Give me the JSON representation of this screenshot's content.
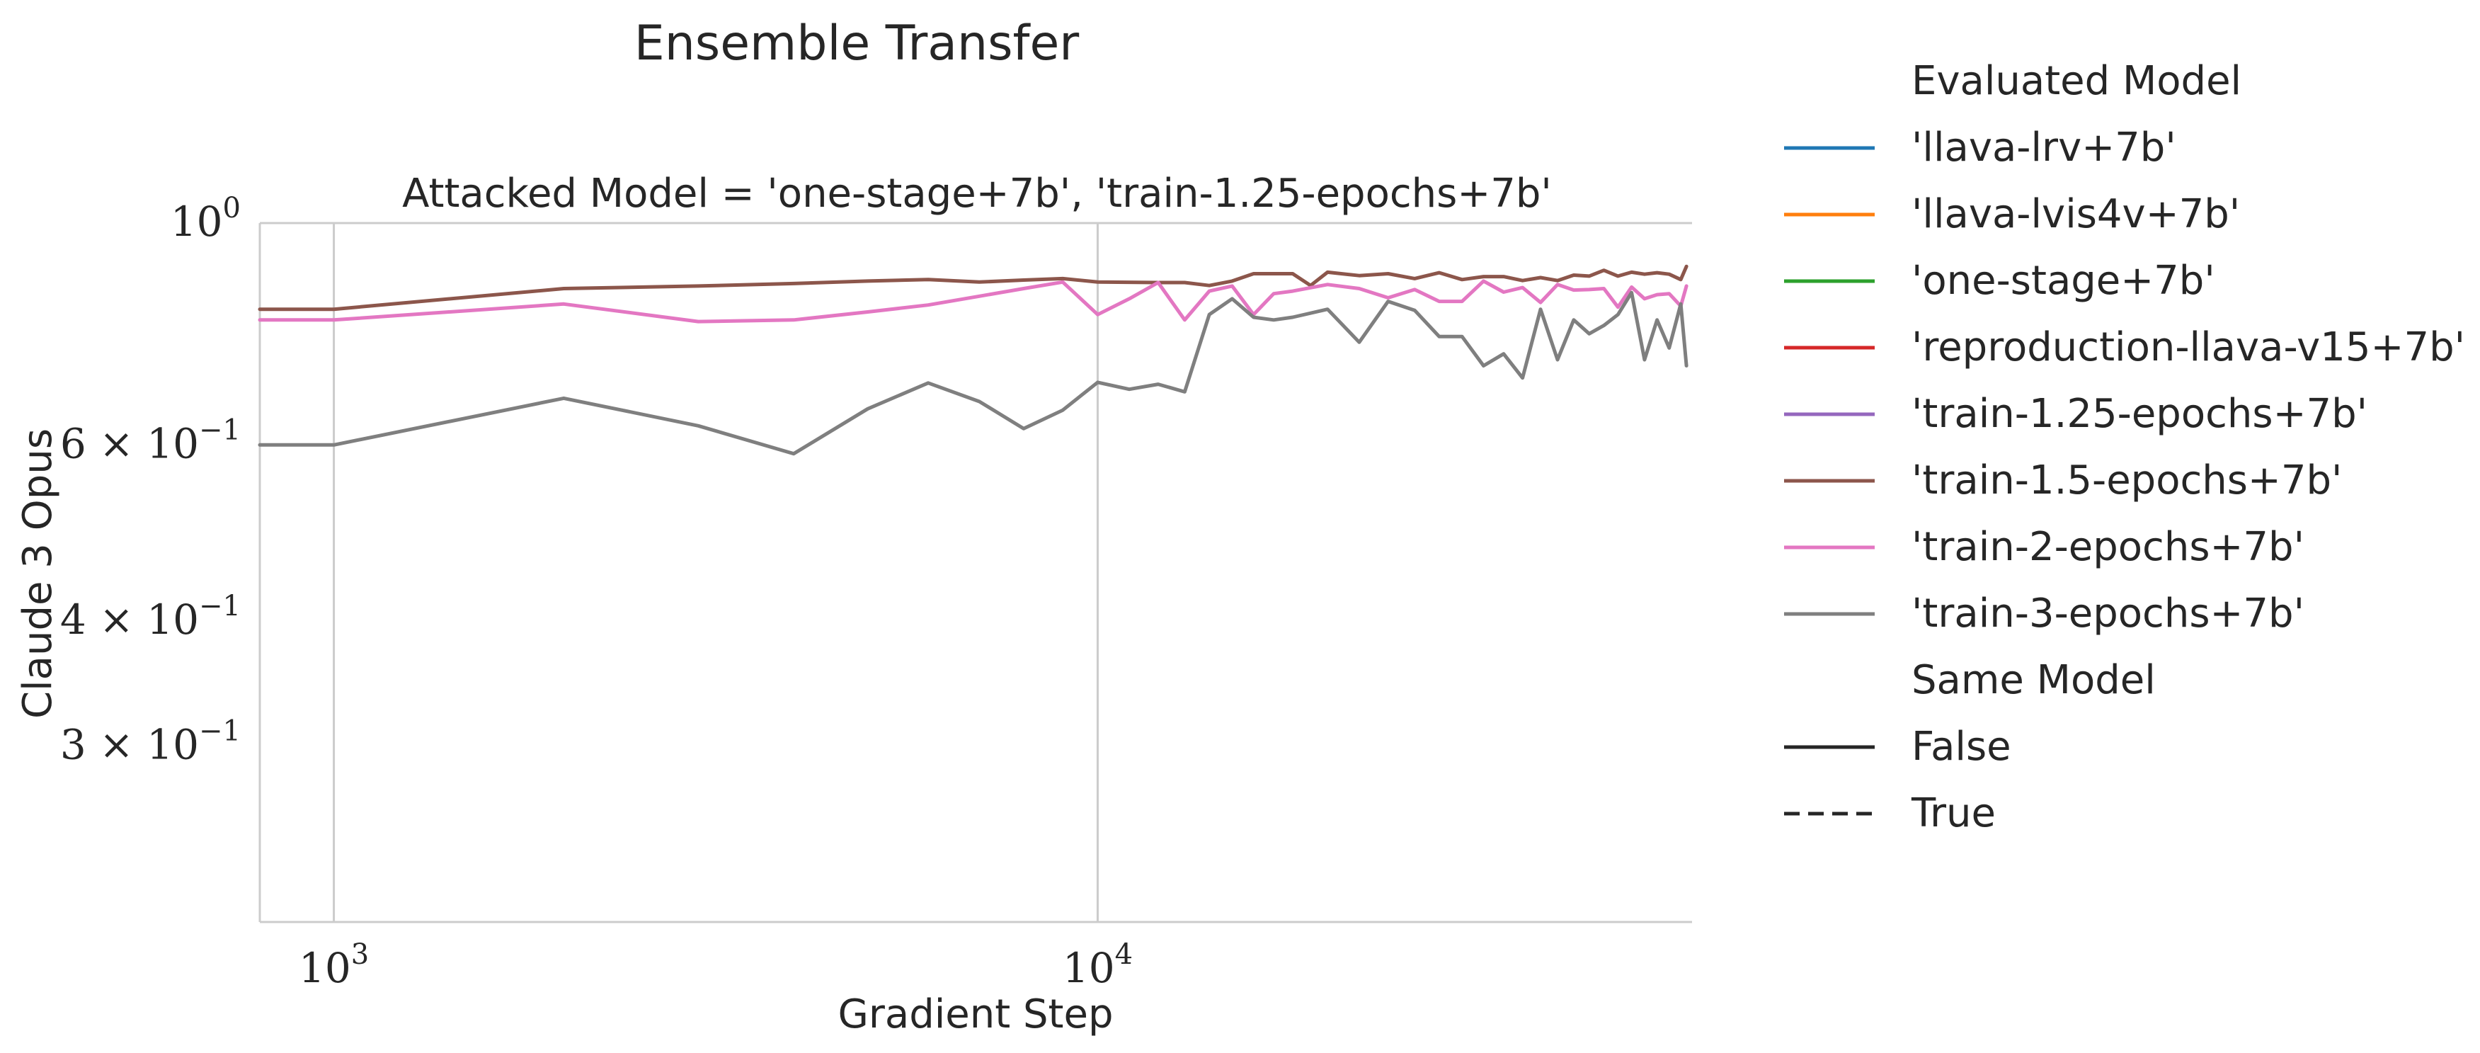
{
  "chart_data": {
    "type": "line",
    "title": "Ensemble Transfer",
    "subtitle": "Attacked Model = 'one-stage+7b', 'train-1.25-epochs+7b'",
    "xlabel": "Gradient Step",
    "ylabel": "Claude 3 Opus",
    "xscale": "log",
    "yscale": "log",
    "xlim": [
      800,
      60000
    ],
    "ylim": [
      0.2,
      1.0
    ],
    "xticks": [
      {
        "value": 1000,
        "base": "10",
        "exp": "3"
      },
      {
        "value": 10000,
        "base": "10",
        "exp": "4"
      }
    ],
    "yticks": [
      {
        "value": 1.0,
        "base": "10",
        "exp": "0",
        "coef": ""
      },
      {
        "value": 0.6,
        "base": "10",
        "exp": "−1",
        "coef": "6 × "
      },
      {
        "value": 0.4,
        "base": "10",
        "exp": "−1",
        "coef": "4 × "
      },
      {
        "value": 0.3,
        "base": "10",
        "exp": "−1",
        "coef": "3 × "
      }
    ],
    "grid": "vertical",
    "legend_placement": "outside-right",
    "legend": {
      "hue_title": "Evaluated Model",
      "hue_entries": [
        {
          "label": "'llava-lrv+7b'",
          "color": "#1f77b4"
        },
        {
          "label": "'llava-lvis4v+7b'",
          "color": "#ff7f0e"
        },
        {
          "label": "'one-stage+7b'",
          "color": "#2ca02c"
        },
        {
          "label": "'reproduction-llava-v15+7b'",
          "color": "#d62728"
        },
        {
          "label": "'train-1.25-epochs+7b'",
          "color": "#9467bd"
        },
        {
          "label": "'train-1.5-epochs+7b'",
          "color": "#8c564b"
        },
        {
          "label": "'train-2-epochs+7b'",
          "color": "#e377c2"
        },
        {
          "label": "'train-3-epochs+7b'",
          "color": "#7f7f7f"
        }
      ],
      "style_title": "Same Model",
      "style_entries": [
        {
          "label": "False",
          "dash": "solid"
        },
        {
          "label": "True",
          "dash": "dashed"
        }
      ]
    },
    "series": [
      {
        "color": "#8c564b",
        "points": [
          [
            800,
            0.82
          ],
          [
            1000,
            0.82
          ],
          [
            2000,
            0.86
          ],
          [
            3000,
            0.865
          ],
          [
            4000,
            0.87
          ],
          [
            5000,
            0.875
          ],
          [
            6000,
            0.878
          ],
          [
            7000,
            0.873
          ],
          [
            8000,
            0.877
          ],
          [
            9000,
            0.88
          ],
          [
            10000,
            0.873
          ],
          [
            12000,
            0.872
          ],
          [
            13000,
            0.872
          ],
          [
            14000,
            0.866
          ],
          [
            15000,
            0.875
          ],
          [
            16000,
            0.89
          ],
          [
            18000,
            0.89
          ],
          [
            19000,
            0.866
          ],
          [
            20000,
            0.893
          ],
          [
            22000,
            0.886
          ],
          [
            24000,
            0.89
          ],
          [
            26000,
            0.88
          ],
          [
            28000,
            0.892
          ],
          [
            30000,
            0.878
          ],
          [
            32000,
            0.884
          ],
          [
            34000,
            0.884
          ],
          [
            36000,
            0.876
          ],
          [
            38000,
            0.882
          ],
          [
            40000,
            0.876
          ],
          [
            42000,
            0.887
          ],
          [
            44000,
            0.885
          ],
          [
            46000,
            0.897
          ],
          [
            48000,
            0.885
          ],
          [
            50000,
            0.893
          ],
          [
            52000,
            0.889
          ],
          [
            54000,
            0.892
          ],
          [
            56000,
            0.889
          ],
          [
            58000,
            0.878
          ],
          [
            59000,
            0.905
          ]
        ]
      },
      {
        "color": "#e377c2",
        "points": [
          [
            800,
            0.8
          ],
          [
            1000,
            0.8
          ],
          [
            2000,
            0.83
          ],
          [
            3000,
            0.797
          ],
          [
            4000,
            0.8
          ],
          [
            5000,
            0.815
          ],
          [
            6000,
            0.828
          ],
          [
            7000,
            0.845
          ],
          [
            8000,
            0.86
          ],
          [
            9000,
            0.873
          ],
          [
            10000,
            0.81
          ],
          [
            11000,
            0.84
          ],
          [
            12000,
            0.872
          ],
          [
            13000,
            0.8
          ],
          [
            14000,
            0.855
          ],
          [
            15000,
            0.865
          ],
          [
            16000,
            0.81
          ],
          [
            17000,
            0.85
          ],
          [
            18000,
            0.855
          ],
          [
            20000,
            0.868
          ],
          [
            22000,
            0.86
          ],
          [
            24000,
            0.842
          ],
          [
            26000,
            0.858
          ],
          [
            28000,
            0.835
          ],
          [
            30000,
            0.835
          ],
          [
            32000,
            0.875
          ],
          [
            34000,
            0.853
          ],
          [
            36000,
            0.862
          ],
          [
            38000,
            0.833
          ],
          [
            40000,
            0.868
          ],
          [
            42000,
            0.857
          ],
          [
            44000,
            0.858
          ],
          [
            46000,
            0.86
          ],
          [
            48000,
            0.824
          ],
          [
            50000,
            0.863
          ],
          [
            52000,
            0.84
          ],
          [
            54000,
            0.848
          ],
          [
            56000,
            0.85
          ],
          [
            58000,
            0.826
          ],
          [
            59000,
            0.865
          ]
        ]
      },
      {
        "color": "#7f7f7f",
        "points": [
          [
            800,
            0.6
          ],
          [
            1000,
            0.6
          ],
          [
            2000,
            0.668
          ],
          [
            3000,
            0.627
          ],
          [
            4000,
            0.588
          ],
          [
            5000,
            0.652
          ],
          [
            6000,
            0.692
          ],
          [
            7000,
            0.663
          ],
          [
            8000,
            0.623
          ],
          [
            9000,
            0.65
          ],
          [
            10000,
            0.693
          ],
          [
            11000,
            0.682
          ],
          [
            12000,
            0.69
          ],
          [
            13000,
            0.678
          ],
          [
            14000,
            0.81
          ],
          [
            15000,
            0.84
          ],
          [
            16000,
            0.805
          ],
          [
            17000,
            0.8
          ],
          [
            18000,
            0.805
          ],
          [
            20000,
            0.82
          ],
          [
            22000,
            0.76
          ],
          [
            24000,
            0.835
          ],
          [
            26000,
            0.818
          ],
          [
            28000,
            0.77
          ],
          [
            30000,
            0.77
          ],
          [
            32000,
            0.72
          ],
          [
            34000,
            0.74
          ],
          [
            36000,
            0.7
          ],
          [
            38000,
            0.82
          ],
          [
            40000,
            0.73
          ],
          [
            42000,
            0.8
          ],
          [
            44000,
            0.775
          ],
          [
            46000,
            0.79
          ],
          [
            48000,
            0.81
          ],
          [
            50000,
            0.852
          ],
          [
            52000,
            0.73
          ],
          [
            54000,
            0.8
          ],
          [
            56000,
            0.75
          ],
          [
            58000,
            0.83
          ],
          [
            59000,
            0.72
          ]
        ]
      }
    ]
  }
}
